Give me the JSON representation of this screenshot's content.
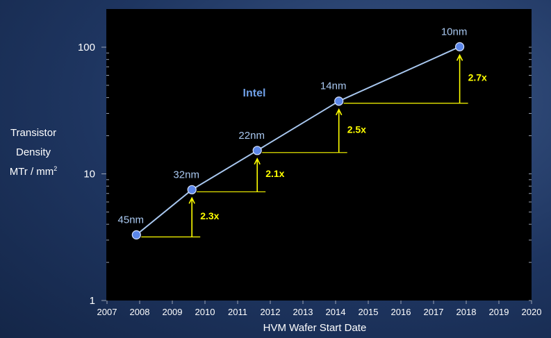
{
  "chart_data": {
    "type": "line",
    "title": "",
    "xlabel": "HVM Wafer Start Date",
    "ylabel_lines": [
      "Transistor",
      "Density",
      "MTr / mm",
      "2"
    ],
    "x_ticks": [
      "2007",
      "2008",
      "2009",
      "2010",
      "2011",
      "2012",
      "2013",
      "2014",
      "2015",
      "2016",
      "2017",
      "2018",
      "2019",
      "2020"
    ],
    "y_ticks": [
      "1",
      "10",
      "100"
    ],
    "xlim": [
      2007,
      2020
    ],
    "ylim": [
      1,
      100
    ],
    "y_scale": "log",
    "grid": false,
    "series_label": "Intel",
    "points": [
      {
        "x": 2007.9,
        "y": 3.3,
        "label": "45nm"
      },
      {
        "x": 2009.6,
        "y": 7.5,
        "label": "32nm"
      },
      {
        "x": 2011.6,
        "y": 15.3,
        "label": "22nm"
      },
      {
        "x": 2014.1,
        "y": 37.5,
        "label": "14nm"
      },
      {
        "x": 2017.8,
        "y": 100.8,
        "label": "10nm"
      }
    ],
    "scaling_factors": [
      "2.3x",
      "2.1x",
      "2.5x",
      "2.7x"
    ],
    "colors": {
      "plot_bg": "#000000",
      "line": "#a9c8f0",
      "marker": "#5b86e8",
      "point_label": "#a9c8f0",
      "series_label": "#6f9fe6",
      "annotation": "#ffff00",
      "axis_text": "#ffffff"
    }
  }
}
